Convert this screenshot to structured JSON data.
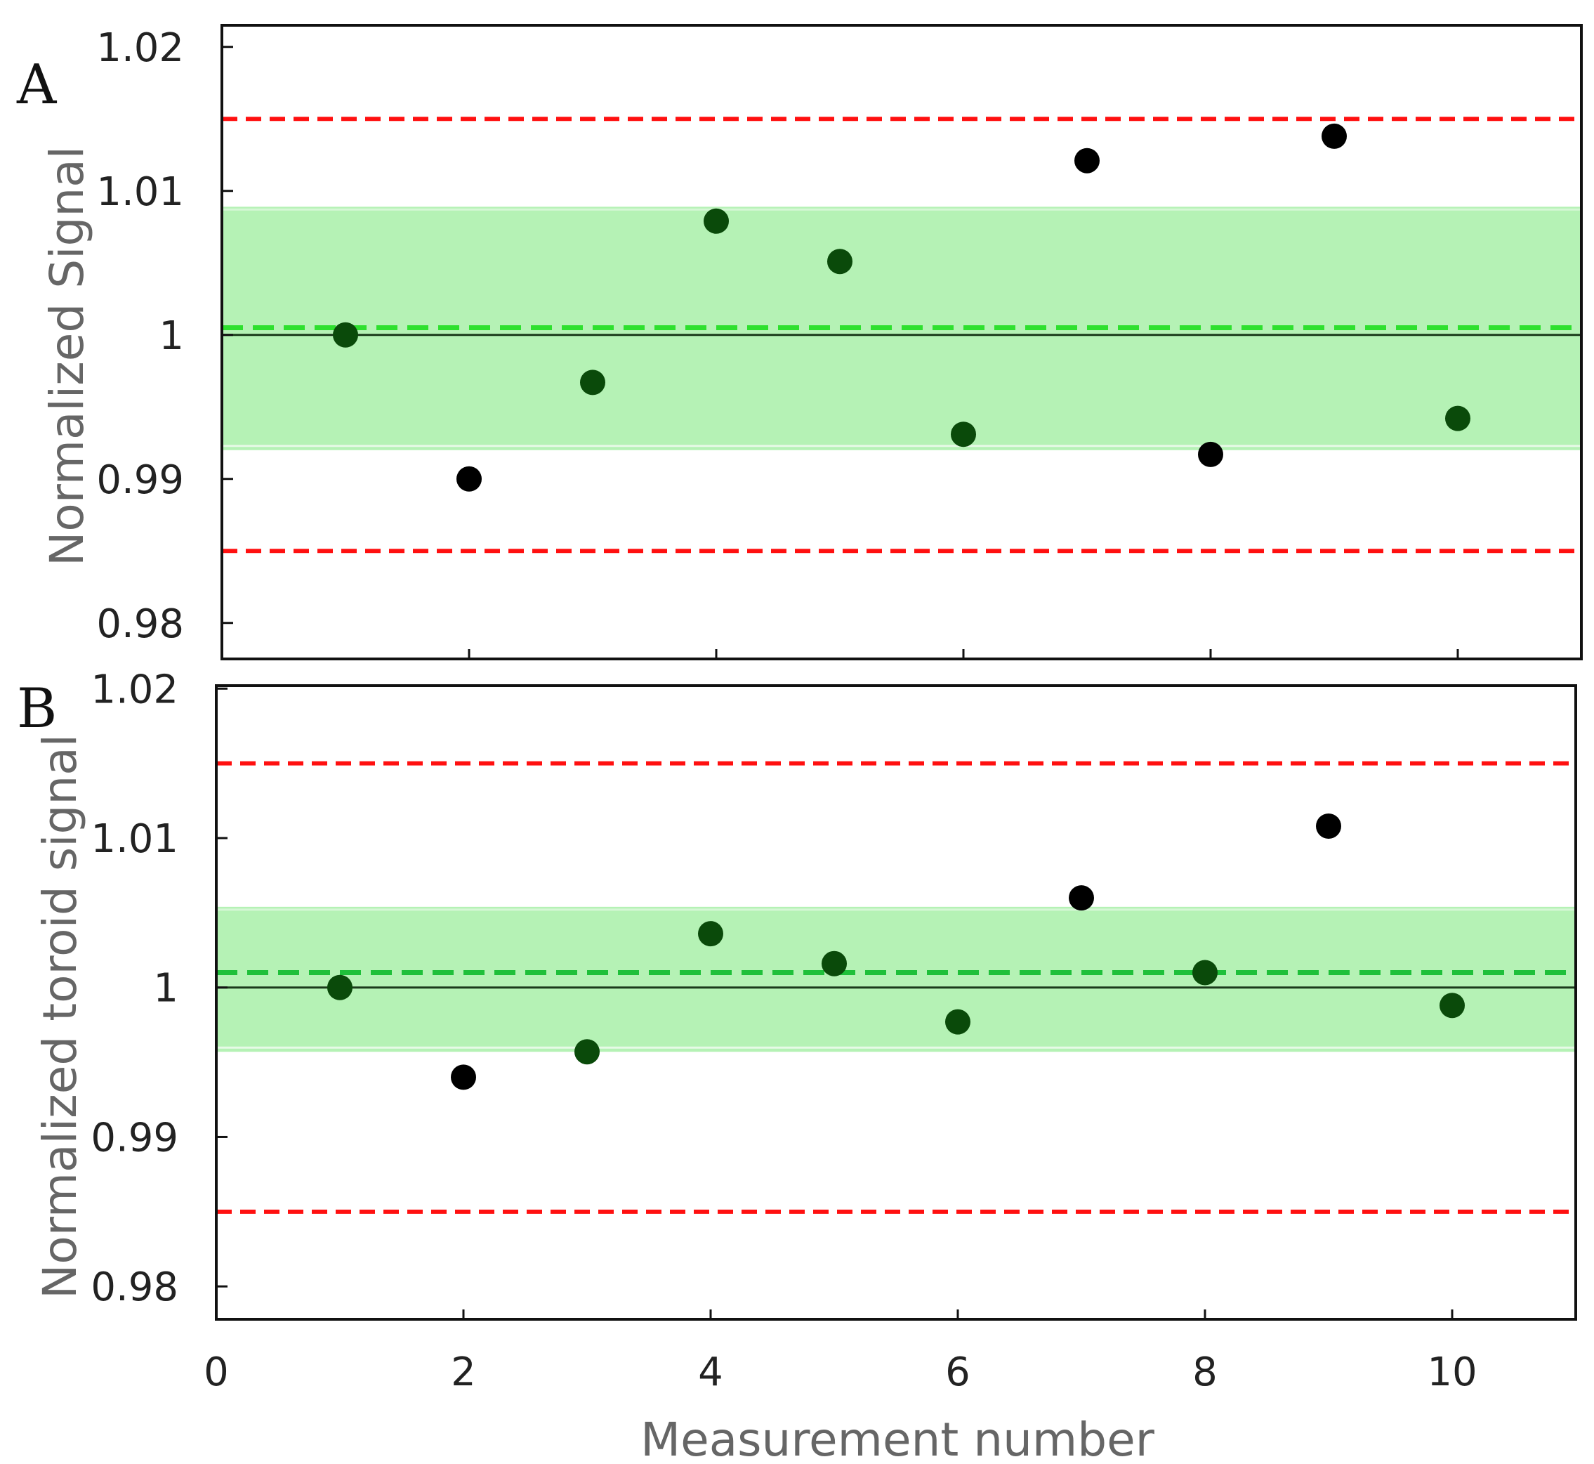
{
  "chart_data": [
    {
      "panel": "A",
      "type": "scatter",
      "ylabel": "Normalized Signal",
      "xlabel": "",
      "xlim": [
        0,
        11
      ],
      "ylim": [
        0.9775,
        1.0215
      ],
      "yticks": [
        0.98,
        0.99,
        1,
        1.01,
        1.02
      ],
      "ytick_labels": [
        "0.98",
        "0.99",
        "1",
        "1.01",
        "1.02"
      ],
      "xticks": [
        2,
        4,
        6,
        8,
        10
      ],
      "xtick_labels": [],
      "x": [
        1,
        2,
        3,
        4,
        5,
        6,
        7,
        8,
        9,
        10
      ],
      "y": [
        1.0,
        0.99,
        0.9967,
        1.0079,
        1.0051,
        0.9931,
        1.0121,
        0.9917,
        1.0138,
        0.9942
      ],
      "band": [
        0.992,
        1.0089
      ],
      "mean_line": 1.0005,
      "reference_line": 1.0,
      "limit_lines": [
        1.015,
        0.985
      ],
      "grid": false,
      "colors": {
        "inside_band": "#0a4a0a",
        "outside_band": "#000000",
        "band": "#b5f2b5",
        "mean": "#2ee02e",
        "limits": "#ff1010",
        "reference": "#1a3a1a"
      }
    },
    {
      "panel": "B",
      "type": "scatter",
      "ylabel": "Normalized toroid signal",
      "xlabel": "Measurement number",
      "xlim": [
        0,
        11
      ],
      "ylim": [
        0.9778,
        1.0202
      ],
      "yticks": [
        0.98,
        0.99,
        1,
        1.01,
        1.02
      ],
      "ytick_labels": [
        "0.98",
        "0.99",
        "1",
        "1.01",
        "1.02"
      ],
      "xticks": [
        0,
        2,
        4,
        6,
        8,
        10
      ],
      "xtick_labels": [
        "0",
        "2",
        "4",
        "6",
        "8",
        "10"
      ],
      "x": [
        1,
        2,
        3,
        4,
        5,
        6,
        7,
        8,
        9,
        10
      ],
      "y": [
        1.0,
        0.994,
        0.9957,
        1.0036,
        1.0016,
        0.9977,
        1.006,
        1.001,
        1.0108,
        0.9988
      ],
      "band": [
        0.9957,
        1.0054
      ],
      "mean_line": 1.001,
      "reference_line": 1.0,
      "limit_lines": [
        1.015,
        0.985
      ],
      "grid": false,
      "colors": {
        "inside_band": "#0a4a0a",
        "outside_band": "#000000",
        "band": "#b5f2b5",
        "mean": "#1fc03a",
        "limits": "#ff1010",
        "reference": "#1a3a1a"
      }
    }
  ]
}
